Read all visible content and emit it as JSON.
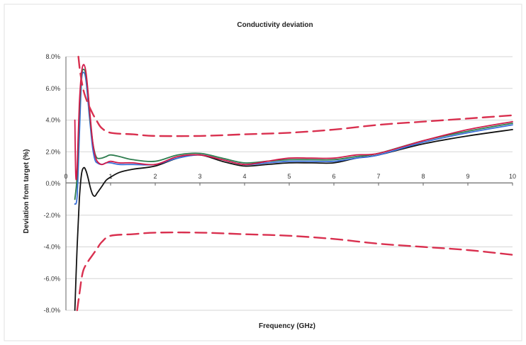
{
  "chart_data": {
    "type": "line",
    "title": "Conductivity deviation",
    "xlabel": "Frequency (GHz)",
    "ylabel": "Deviation from target (%)",
    "xlim": [
      0,
      10
    ],
    "ylim": [
      -8,
      8
    ],
    "x_ticks": [
      0,
      1,
      2,
      3,
      4,
      5,
      6,
      7,
      8,
      9,
      10
    ],
    "x_tick_labels": [
      "0",
      "1",
      "2",
      "3",
      "4",
      "5",
      "6",
      "7",
      "8",
      "9",
      "10"
    ],
    "y_ticks": [
      8,
      6,
      4,
      2,
      0,
      -2,
      -4,
      -6,
      -8
    ],
    "y_tick_labels": [
      "8.0%",
      "6.0%",
      "4.0%",
      "2.0%",
      "0.0%",
      "-2.0%",
      "-4.0%",
      "-6.0%",
      "-8.0%"
    ],
    "grid": true,
    "legend": "none",
    "colors": {
      "black": "#111111",
      "blue": "#3a6fd8",
      "green": "#2e7d4f",
      "red": "#d11a4a",
      "limit": "#d9304f"
    },
    "series": [
      {
        "color": "black",
        "style": "solid",
        "x": [
          0.2,
          0.25,
          0.3,
          0.35,
          0.4,
          0.45,
          0.5,
          0.55,
          0.6,
          0.65,
          0.7,
          0.8,
          0.9,
          1.0,
          1.2,
          1.5,
          2.0,
          2.5,
          3.0,
          3.5,
          4.0,
          4.5,
          5.0,
          5.5,
          6.0,
          6.5,
          7.0,
          8.0,
          9.0,
          10.0
        ],
        "y": [
          -8.0,
          -4.0,
          -1.0,
          0.6,
          1.0,
          0.8,
          0.3,
          -0.3,
          -0.7,
          -0.8,
          -0.6,
          -0.2,
          0.2,
          0.4,
          0.7,
          0.9,
          1.1,
          1.6,
          1.8,
          1.4,
          1.1,
          1.2,
          1.3,
          1.3,
          1.3,
          1.6,
          1.8,
          2.5,
          3.0,
          3.4
        ]
      },
      {
        "color": "blue",
        "style": "solid",
        "x": [
          0.2,
          0.25,
          0.3,
          0.35,
          0.4,
          0.45,
          0.5,
          0.55,
          0.6,
          0.65,
          0.7,
          0.8,
          0.9,
          1.0,
          1.2,
          1.5,
          2.0,
          2.5,
          3.0,
          3.5,
          4.0,
          4.5,
          5.0,
          5.5,
          6.0,
          6.5,
          7.0,
          8.0,
          9.0,
          10.0
        ],
        "y": [
          -1.3,
          -0.8,
          3.0,
          6.5,
          7.0,
          6.5,
          5.0,
          3.5,
          2.2,
          1.5,
          1.3,
          1.2,
          1.3,
          1.3,
          1.2,
          1.2,
          1.2,
          1.6,
          1.8,
          1.5,
          1.2,
          1.3,
          1.4,
          1.4,
          1.4,
          1.6,
          1.8,
          2.6,
          3.2,
          3.7
        ]
      },
      {
        "color": "green",
        "style": "solid",
        "x": [
          0.2,
          0.25,
          0.3,
          0.35,
          0.4,
          0.45,
          0.5,
          0.55,
          0.6,
          0.65,
          0.7,
          0.8,
          0.9,
          1.0,
          1.2,
          1.5,
          2.0,
          2.5,
          3.0,
          3.5,
          4.0,
          4.5,
          5.0,
          5.5,
          6.0,
          6.5,
          7.0,
          8.0,
          9.0,
          10.0
        ],
        "y": [
          -1.0,
          0.5,
          4.5,
          6.8,
          7.2,
          6.8,
          5.5,
          3.8,
          2.6,
          1.9,
          1.6,
          1.6,
          1.7,
          1.8,
          1.7,
          1.5,
          1.4,
          1.8,
          1.9,
          1.6,
          1.3,
          1.4,
          1.5,
          1.5,
          1.5,
          1.7,
          1.9,
          2.7,
          3.3,
          3.8
        ]
      },
      {
        "color": "red",
        "style": "solid",
        "x": [
          0.2,
          0.22,
          0.25,
          0.3,
          0.35,
          0.4,
          0.45,
          0.5,
          0.55,
          0.6,
          0.65,
          0.7,
          0.8,
          0.9,
          1.0,
          1.2,
          1.5,
          2.0,
          2.5,
          3.0,
          3.5,
          4.0,
          4.5,
          5.0,
          5.5,
          6.0,
          6.5,
          7.0,
          8.0,
          9.0,
          10.0
        ],
        "y": [
          4.0,
          0.5,
          1.0,
          5.0,
          7.0,
          7.5,
          7.0,
          5.6,
          4.0,
          2.6,
          1.8,
          1.4,
          1.2,
          1.3,
          1.4,
          1.3,
          1.3,
          1.2,
          1.7,
          1.8,
          1.5,
          1.2,
          1.4,
          1.6,
          1.6,
          1.6,
          1.8,
          1.9,
          2.7,
          3.4,
          3.9
        ]
      },
      {
        "color": "limit",
        "style": "dashed",
        "x": [
          0.28,
          0.32,
          0.4,
          0.5,
          0.6,
          0.7,
          0.8,
          1.0,
          1.5,
          2.0,
          3.0,
          4.0,
          5.0,
          6.0,
          7.0,
          8.0,
          9.0,
          10.0
        ],
        "y": [
          8.0,
          7.0,
          5.8,
          5.0,
          4.4,
          3.9,
          3.5,
          3.2,
          3.1,
          3.0,
          3.0,
          3.1,
          3.2,
          3.4,
          3.7,
          3.9,
          4.1,
          4.3
        ]
      },
      {
        "color": "limit",
        "style": "dashed",
        "x": [
          0.25,
          0.3,
          0.35,
          0.4,
          0.5,
          0.6,
          0.7,
          0.8,
          1.0,
          1.5,
          2.0,
          3.0,
          4.0,
          5.0,
          6.0,
          7.0,
          8.0,
          9.0,
          10.0
        ],
        "y": [
          -8.0,
          -7.0,
          -6.0,
          -5.4,
          -4.9,
          -4.5,
          -4.1,
          -3.7,
          -3.3,
          -3.2,
          -3.1,
          -3.1,
          -3.2,
          -3.3,
          -3.5,
          -3.8,
          -4.0,
          -4.2,
          -4.5
        ]
      }
    ]
  }
}
